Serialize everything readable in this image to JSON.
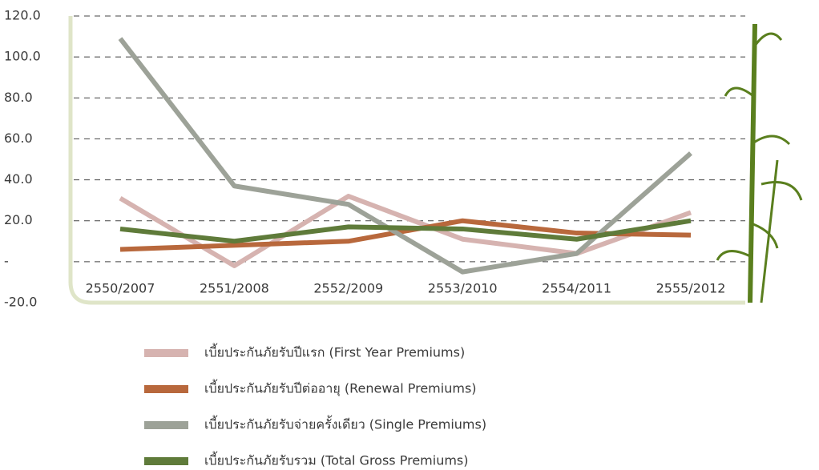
{
  "chart_data": {
    "type": "line",
    "categories": [
      "2550/2007",
      "2551/2008",
      "2552/2009",
      "2553/2010",
      "2554/2011",
      "2555/2012"
    ],
    "series": [
      {
        "name": "เบี้ยประกันภัยรับปีแรก (First Year Premiums)",
        "color": "#d6b3b0",
        "values": [
          31,
          -2,
          32,
          11,
          4,
          24
        ]
      },
      {
        "name": "เบี้ยประกันภัยรับปีต่ออายุ (Renewal Premiums)",
        "color": "#b8683c",
        "values": [
          6,
          8,
          10,
          20,
          14,
          13
        ]
      },
      {
        "name": "เบี้ยประกันภัยรับจ่ายครั้งเดียว (Single Premiums)",
        "color": "#9da298",
        "values": [
          109,
          37,
          28,
          -5,
          4,
          53
        ]
      },
      {
        "name": "เบี้ยประกันภัยรับรวม (Total Gross Premiums)",
        "color": "#5f7b3a",
        "values": [
          16,
          10,
          17,
          16,
          11,
          20
        ]
      }
    ],
    "ylim": [
      -20,
      120
    ],
    "yticks": [
      {
        "value": -20,
        "label": "-20.0"
      },
      {
        "value": 0,
        "label": "-"
      },
      {
        "value": 20,
        "label": "20.0"
      },
      {
        "value": 40,
        "label": "40.0"
      },
      {
        "value": 60,
        "label": "60.0"
      },
      {
        "value": 80,
        "label": "80.0"
      },
      {
        "value": 100,
        "label": "100.0"
      },
      {
        "value": 120,
        "label": "120.0"
      }
    ],
    "grid": true
  }
}
